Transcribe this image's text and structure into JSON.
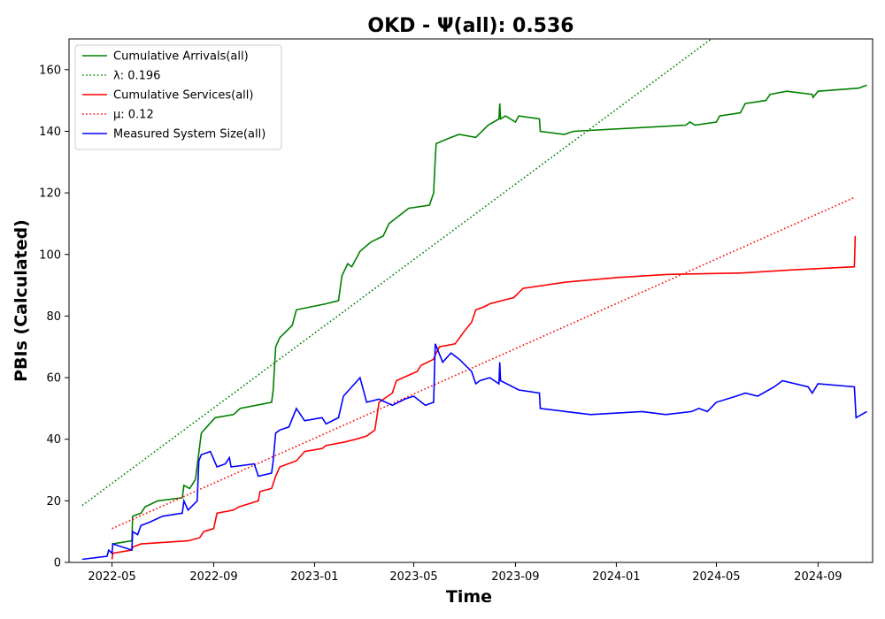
{
  "chart_data": {
    "type": "line",
    "title": "OKD -  Ψ(all): 0.536",
    "xlabel": "Time",
    "ylabel": "PBIs (Calculated)",
    "xlim": [
      "2022-03-10",
      "2024-11-06"
    ],
    "ylim": [
      0,
      170
    ],
    "x_ticks": [
      "2022-05",
      "2022-09",
      "2023-01",
      "2023-05",
      "2023-09",
      "2024-01",
      "2024-05",
      "2024-09"
    ],
    "y_ticks": [
      0,
      20,
      40,
      60,
      80,
      100,
      120,
      140,
      160
    ],
    "grid": false,
    "legend": "top-left",
    "series": [
      {
        "name": "Cumulative Arrivals(all)",
        "style": "solid",
        "color": "#008000",
        "points": [
          [
            "2022-05-01",
            6
          ],
          [
            "2022-05-25",
            7
          ],
          [
            "2022-05-26",
            15
          ],
          [
            "2022-06-05",
            16
          ],
          [
            "2022-06-10",
            18
          ],
          [
            "2022-06-25",
            20
          ],
          [
            "2022-07-25",
            21
          ],
          [
            "2022-07-27",
            25
          ],
          [
            "2022-08-03",
            24
          ],
          [
            "2022-08-10",
            27
          ],
          [
            "2022-08-17",
            42
          ],
          [
            "2022-08-27",
            45
          ],
          [
            "2022-09-03",
            47
          ],
          [
            "2022-09-25",
            48
          ],
          [
            "2022-10-03",
            50
          ],
          [
            "2022-11-10",
            52
          ],
          [
            "2022-11-12",
            56
          ],
          [
            "2022-11-15",
            70
          ],
          [
            "2022-11-20",
            73
          ],
          [
            "2022-12-05",
            77
          ],
          [
            "2022-12-10",
            82
          ],
          [
            "2023-01-15",
            84
          ],
          [
            "2023-01-30",
            85
          ],
          [
            "2023-02-03",
            93
          ],
          [
            "2023-02-10",
            97
          ],
          [
            "2023-02-15",
            96
          ],
          [
            "2023-02-25",
            101
          ],
          [
            "2023-03-10",
            104
          ],
          [
            "2023-03-25",
            106
          ],
          [
            "2023-04-01",
            110
          ],
          [
            "2023-04-20",
            114
          ],
          [
            "2023-04-25",
            115
          ],
          [
            "2023-05-20",
            116
          ],
          [
            "2023-05-25",
            120
          ],
          [
            "2023-05-27",
            131
          ],
          [
            "2023-05-28",
            136
          ],
          [
            "2023-06-15",
            138
          ],
          [
            "2023-06-25",
            139
          ],
          [
            "2023-07-15",
            138
          ],
          [
            "2023-07-30",
            142
          ],
          [
            "2023-08-12",
            144
          ],
          [
            "2023-08-13",
            149
          ],
          [
            "2023-08-14",
            144
          ],
          [
            "2023-08-20",
            145
          ],
          [
            "2023-09-01",
            143
          ],
          [
            "2023-09-05",
            145
          ],
          [
            "2023-09-30",
            144
          ],
          [
            "2023-10-01",
            140
          ],
          [
            "2023-10-30",
            139
          ],
          [
            "2023-11-10",
            140
          ],
          [
            "2024-03-25",
            142
          ],
          [
            "2024-03-30",
            143
          ],
          [
            "2024-04-05",
            142
          ],
          [
            "2024-05-01",
            143
          ],
          [
            "2024-05-05",
            145
          ],
          [
            "2024-05-30",
            146
          ],
          [
            "2024-06-05",
            149
          ],
          [
            "2024-06-30",
            150
          ],
          [
            "2024-07-05",
            152
          ],
          [
            "2024-07-25",
            153
          ],
          [
            "2024-08-25",
            152
          ],
          [
            "2024-08-26",
            151
          ],
          [
            "2024-09-01",
            153
          ],
          [
            "2024-10-20",
            154
          ],
          [
            "2024-10-30",
            155
          ]
        ]
      },
      {
        "name": "λ: 0.196",
        "style": "dotted",
        "color": "#008000",
        "points": [
          [
            "2022-03-26",
            18.5
          ],
          [
            "2024-04-25",
            170
          ]
        ]
      },
      {
        "name": "Cumulative Services(all)",
        "style": "solid",
        "color": "#ff0000",
        "points": [
          [
            "2022-05-01",
            1
          ],
          [
            "2022-05-02",
            3
          ],
          [
            "2022-05-25",
            4
          ],
          [
            "2022-05-26",
            5
          ],
          [
            "2022-06-05",
            6
          ],
          [
            "2022-08-01",
            7
          ],
          [
            "2022-08-15",
            8
          ],
          [
            "2022-08-20",
            10
          ],
          [
            "2022-09-01",
            11
          ],
          [
            "2022-09-05",
            16
          ],
          [
            "2022-09-25",
            17
          ],
          [
            "2022-10-01",
            18
          ],
          [
            "2022-10-25",
            20
          ],
          [
            "2022-10-27",
            23
          ],
          [
            "2022-11-10",
            24
          ],
          [
            "2022-11-15",
            28
          ],
          [
            "2022-11-20",
            31
          ],
          [
            "2022-12-10",
            33
          ],
          [
            "2022-12-20",
            36
          ],
          [
            "2023-01-10",
            37
          ],
          [
            "2023-01-15",
            38
          ],
          [
            "2023-02-05",
            39
          ],
          [
            "2023-02-20",
            40
          ],
          [
            "2023-03-05",
            41
          ],
          [
            "2023-03-15",
            43
          ],
          [
            "2023-03-20",
            52
          ],
          [
            "2023-04-05",
            55
          ],
          [
            "2023-04-10",
            59
          ],
          [
            "2023-05-05",
            62
          ],
          [
            "2023-05-10",
            64
          ],
          [
            "2023-05-25",
            66
          ],
          [
            "2023-05-28",
            68
          ],
          [
            "2023-06-01",
            70
          ],
          [
            "2023-06-20",
            71
          ],
          [
            "2023-07-01",
            75
          ],
          [
            "2023-07-10",
            78
          ],
          [
            "2023-07-15",
            82
          ],
          [
            "2023-07-25",
            83
          ],
          [
            "2023-08-01",
            84
          ],
          [
            "2023-08-30",
            86
          ],
          [
            "2023-09-10",
            89
          ],
          [
            "2023-11-01",
            91
          ],
          [
            "2024-01-01",
            92.5
          ],
          [
            "2024-03-01",
            93.5
          ],
          [
            "2024-06-01",
            94
          ],
          [
            "2024-08-01",
            95
          ],
          [
            "2024-10-15",
            96
          ],
          [
            "2024-10-16",
            106
          ]
        ]
      },
      {
        "name": "μ: 0.12",
        "style": "dotted",
        "color": "#ff0000",
        "points": [
          [
            "2022-05-01",
            11
          ],
          [
            "2024-10-15",
            118.5
          ]
        ]
      },
      {
        "name": "Measured System Size(all)",
        "style": "solid",
        "color": "#0000ff",
        "points": [
          [
            "2022-03-26",
            1
          ],
          [
            "2022-04-25",
            2
          ],
          [
            "2022-04-27",
            4
          ],
          [
            "2022-05-01",
            3
          ],
          [
            "2022-05-02",
            6
          ],
          [
            "2022-05-25",
            4
          ],
          [
            "2022-05-26",
            10
          ],
          [
            "2022-06-01",
            9
          ],
          [
            "2022-06-05",
            12
          ],
          [
            "2022-06-15",
            13
          ],
          [
            "2022-07-01",
            15
          ],
          [
            "2022-07-25",
            16
          ],
          [
            "2022-07-27",
            20
          ],
          [
            "2022-08-01",
            17
          ],
          [
            "2022-08-12",
            20
          ],
          [
            "2022-08-14",
            33
          ],
          [
            "2022-08-17",
            35
          ],
          [
            "2022-08-28",
            36
          ],
          [
            "2022-09-05",
            31
          ],
          [
            "2022-09-15",
            32
          ],
          [
            "2022-09-20",
            34
          ],
          [
            "2022-09-22",
            31
          ],
          [
            "2022-10-20",
            32
          ],
          [
            "2022-10-25",
            28
          ],
          [
            "2022-11-10",
            29
          ],
          [
            "2022-11-12",
            33
          ],
          [
            "2022-11-15",
            42
          ],
          [
            "2022-11-20",
            43
          ],
          [
            "2022-12-01",
            44
          ],
          [
            "2022-12-10",
            50
          ],
          [
            "2022-12-20",
            46
          ],
          [
            "2023-01-10",
            47
          ],
          [
            "2023-01-15",
            45
          ],
          [
            "2023-01-30",
            47
          ],
          [
            "2023-02-05",
            54
          ],
          [
            "2023-02-15",
            57
          ],
          [
            "2023-02-25",
            60
          ],
          [
            "2023-03-05",
            52
          ],
          [
            "2023-03-20",
            53
          ],
          [
            "2023-04-05",
            51
          ],
          [
            "2023-04-20",
            53
          ],
          [
            "2023-05-01",
            54
          ],
          [
            "2023-05-15",
            51
          ],
          [
            "2023-05-25",
            52
          ],
          [
            "2023-05-27",
            71
          ],
          [
            "2023-06-05",
            65
          ],
          [
            "2023-06-15",
            68
          ],
          [
            "2023-06-25",
            66
          ],
          [
            "2023-07-10",
            62
          ],
          [
            "2023-07-15",
            58
          ],
          [
            "2023-07-20",
            59
          ],
          [
            "2023-08-01",
            60
          ],
          [
            "2023-08-12",
            58
          ],
          [
            "2023-08-13",
            65
          ],
          [
            "2023-08-14",
            59
          ],
          [
            "2023-09-05",
            56
          ],
          [
            "2023-09-30",
            55
          ],
          [
            "2023-10-01",
            50
          ],
          [
            "2023-11-01",
            49
          ],
          [
            "2023-12-01",
            48
          ],
          [
            "2024-02-01",
            49
          ],
          [
            "2024-03-01",
            48
          ],
          [
            "2024-04-01",
            49
          ],
          [
            "2024-04-10",
            50
          ],
          [
            "2024-04-20",
            49
          ],
          [
            "2024-05-01",
            52
          ],
          [
            "2024-05-25",
            54
          ],
          [
            "2024-06-05",
            55
          ],
          [
            "2024-06-20",
            54
          ],
          [
            "2024-07-10",
            57
          ],
          [
            "2024-07-20",
            59
          ],
          [
            "2024-08-20",
            57
          ],
          [
            "2024-08-25",
            55
          ],
          [
            "2024-09-01",
            58
          ],
          [
            "2024-10-15",
            57
          ],
          [
            "2024-10-17",
            47
          ],
          [
            "2024-10-30",
            49
          ]
        ]
      }
    ]
  }
}
